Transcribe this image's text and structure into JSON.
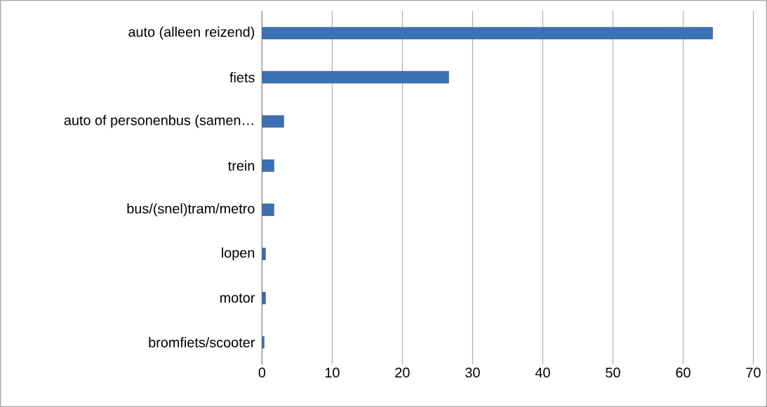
{
  "chart_data": {
    "type": "bar",
    "orientation": "horizontal",
    "categories": [
      "auto (alleen reizend)",
      "fiets",
      "auto of personenbus (samen…",
      "trein",
      "bus/(snel)tram/metro",
      "lopen",
      "motor",
      "bromfiets/scooter"
    ],
    "values": [
      64.2,
      26.6,
      3.1,
      1.7,
      1.7,
      0.5,
      0.5,
      0.3
    ],
    "color": "#3c70b4",
    "xlim": [
      0,
      70
    ],
    "xticks": [
      0,
      10,
      20,
      30,
      40,
      50,
      60,
      70
    ],
    "grid": "x"
  }
}
